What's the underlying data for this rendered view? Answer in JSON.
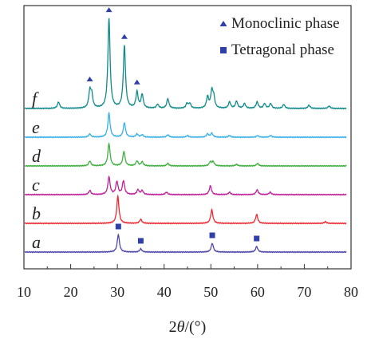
{
  "chart_data": {
    "type": "line",
    "xlabel_parts": {
      "pre": "2",
      "var": "θ",
      "post": "/(°)"
    },
    "ylabel": "",
    "xlim": [
      10,
      80
    ],
    "xticks": [
      "10",
      "20",
      "30",
      "40",
      "50",
      "60",
      "70",
      "80"
    ],
    "legend": {
      "placement": "top-right",
      "items": [
        {
          "marker": "triangle",
          "label": "Monoclinic phase",
          "color": "#3040a8"
        },
        {
          "marker": "square",
          "label": "Tetragonal phase",
          "color": "#3040a8"
        }
      ]
    },
    "series": [
      {
        "name": "a",
        "color": "#5048a8",
        "baseline": 0,
        "peaks": [
          [
            30.2,
            22
          ],
          [
            35.0,
            4
          ],
          [
            50.3,
            11
          ],
          [
            59.8,
            7
          ]
        ]
      },
      {
        "name": "b",
        "color": "#f02830",
        "baseline": 36,
        "peaks": [
          [
            30.1,
            34
          ],
          [
            35.0,
            5
          ],
          [
            50.2,
            17
          ],
          [
            59.8,
            11
          ],
          [
            74.5,
            2
          ]
        ]
      },
      {
        "name": "c",
        "color": "#c0209a",
        "baseline": 72,
        "peaks": [
          [
            24.1,
            5
          ],
          [
            28.2,
            22
          ],
          [
            29.9,
            16
          ],
          [
            31.3,
            17
          ],
          [
            34.4,
            6
          ],
          [
            35.3,
            5
          ],
          [
            40.5,
            3
          ],
          [
            49.9,
            11
          ],
          [
            54.0,
            3
          ],
          [
            59.9,
            6
          ],
          [
            62.7,
            3
          ]
        ]
      },
      {
        "name": "d",
        "color": "#40b040",
        "baseline": 108,
        "peaks": [
          [
            24.1,
            6
          ],
          [
            28.2,
            28
          ],
          [
            31.4,
            18
          ],
          [
            34.2,
            6
          ],
          [
            35.3,
            5
          ],
          [
            40.8,
            3
          ],
          [
            49.9,
            5
          ],
          [
            50.5,
            5
          ],
          [
            55.5,
            2
          ],
          [
            60.0,
            3
          ]
        ]
      },
      {
        "name": "e",
        "color": "#38b0e8",
        "baseline": 144,
        "peaks": [
          [
            24.1,
            4
          ],
          [
            28.2,
            30
          ],
          [
            31.5,
            18
          ],
          [
            34.2,
            4
          ],
          [
            35.3,
            3
          ],
          [
            40.8,
            3
          ],
          [
            45.0,
            2
          ],
          [
            49.3,
            4
          ],
          [
            50.2,
            5
          ],
          [
            54.0,
            2
          ],
          [
            60.0,
            2
          ],
          [
            62.8,
            2
          ]
        ]
      },
      {
        "name": "f",
        "color": "#108a8a",
        "baseline": 180,
        "peaks": [
          [
            17.4,
            8
          ],
          [
            24.1,
            20
          ],
          [
            24.5,
            16
          ],
          [
            28.2,
            112
          ],
          [
            31.5,
            78
          ],
          [
            34.2,
            20
          ],
          [
            35.3,
            17
          ],
          [
            38.6,
            5
          ],
          [
            40.8,
            12
          ],
          [
            44.9,
            6
          ],
          [
            45.5,
            6
          ],
          [
            49.3,
            14
          ],
          [
            50.2,
            20
          ],
          [
            50.6,
            13
          ],
          [
            54.0,
            8
          ],
          [
            55.5,
            9
          ],
          [
            57.2,
            6
          ],
          [
            59.9,
            8
          ],
          [
            61.5,
            6
          ],
          [
            62.8,
            6
          ],
          [
            65.6,
            5
          ],
          [
            71.0,
            4
          ],
          [
            75.3,
            3
          ]
        ]
      }
    ],
    "monoclinic_markers": [
      24.1,
      28.2,
      31.5,
      34.2
    ],
    "tetragonal_markers": [
      30.2,
      35.0,
      50.3,
      59.8
    ]
  }
}
